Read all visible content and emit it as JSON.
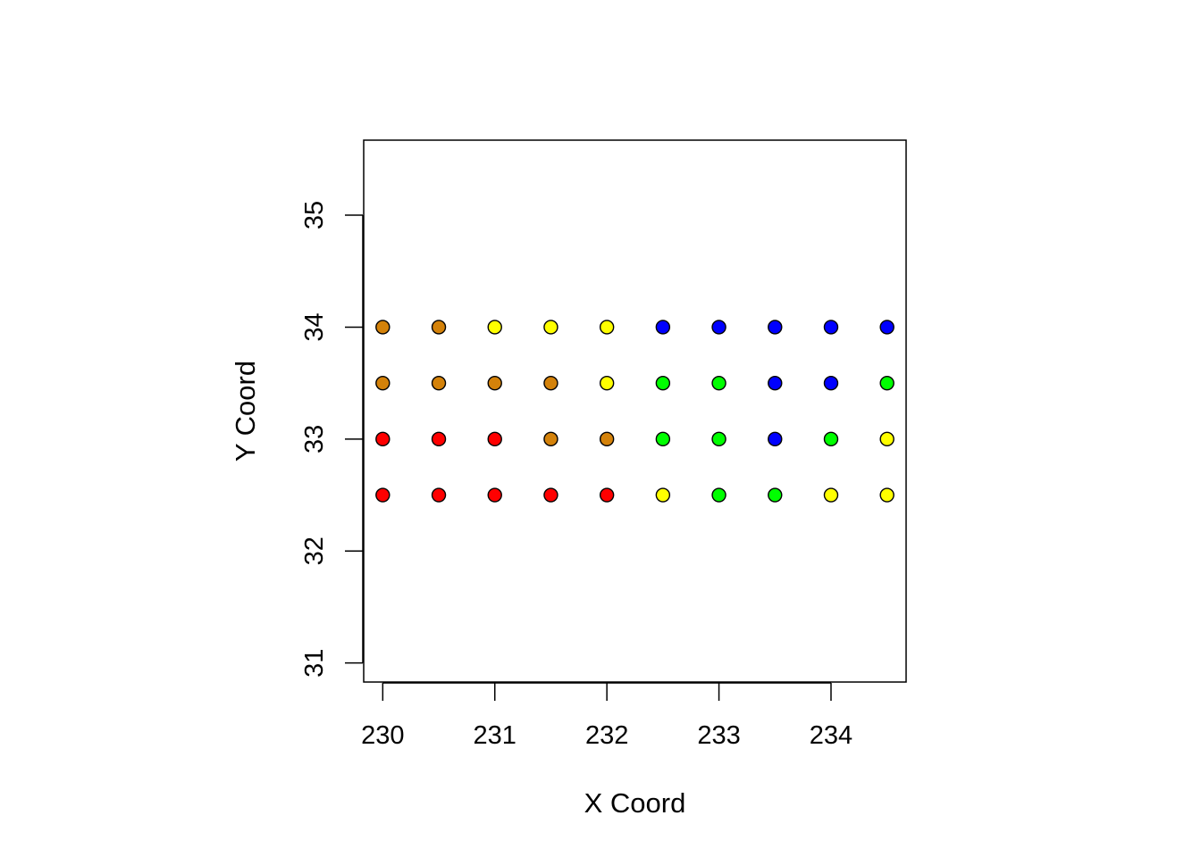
{
  "chart_data": {
    "type": "scatter",
    "title": "",
    "xlabel": "X Coord",
    "ylabel": "Y Coord",
    "xlim": [
      229.83,
      234.67
    ],
    "ylim": [
      30.83,
      35.67
    ],
    "x_ticks": [
      230,
      231,
      232,
      233,
      234
    ],
    "y_ticks": [
      31,
      32,
      33,
      34,
      35
    ],
    "grid": false,
    "legend": "none",
    "marker": "filled circle with black outline",
    "colors": {
      "red": "#FF0000",
      "orange": "#D4820A",
      "yellow": "#FFFF00",
      "green": "#00FF00",
      "blue": "#0000FF",
      "outline": "#000000"
    },
    "points": [
      {
        "x": 230.0,
        "y": 34.0,
        "color": "#D4820A"
      },
      {
        "x": 230.5,
        "y": 34.0,
        "color": "#D4820A"
      },
      {
        "x": 231.0,
        "y": 34.0,
        "color": "#FFFF00"
      },
      {
        "x": 231.5,
        "y": 34.0,
        "color": "#FFFF00"
      },
      {
        "x": 232.0,
        "y": 34.0,
        "color": "#FFFF00"
      },
      {
        "x": 232.5,
        "y": 34.0,
        "color": "#0000FF"
      },
      {
        "x": 233.0,
        "y": 34.0,
        "color": "#0000FF"
      },
      {
        "x": 233.5,
        "y": 34.0,
        "color": "#0000FF"
      },
      {
        "x": 234.0,
        "y": 34.0,
        "color": "#0000FF"
      },
      {
        "x": 234.5,
        "y": 34.0,
        "color": "#0000FF"
      },
      {
        "x": 230.0,
        "y": 33.5,
        "color": "#D4820A"
      },
      {
        "x": 230.5,
        "y": 33.5,
        "color": "#D4820A"
      },
      {
        "x": 231.0,
        "y": 33.5,
        "color": "#D4820A"
      },
      {
        "x": 231.5,
        "y": 33.5,
        "color": "#D4820A"
      },
      {
        "x": 232.0,
        "y": 33.5,
        "color": "#FFFF00"
      },
      {
        "x": 232.5,
        "y": 33.5,
        "color": "#00FF00"
      },
      {
        "x": 233.0,
        "y": 33.5,
        "color": "#00FF00"
      },
      {
        "x": 233.5,
        "y": 33.5,
        "color": "#0000FF"
      },
      {
        "x": 234.0,
        "y": 33.5,
        "color": "#0000FF"
      },
      {
        "x": 234.5,
        "y": 33.5,
        "color": "#00FF00"
      },
      {
        "x": 230.0,
        "y": 33.0,
        "color": "#FF0000"
      },
      {
        "x": 230.5,
        "y": 33.0,
        "color": "#FF0000"
      },
      {
        "x": 231.0,
        "y": 33.0,
        "color": "#FF0000"
      },
      {
        "x": 231.5,
        "y": 33.0,
        "color": "#D4820A"
      },
      {
        "x": 232.0,
        "y": 33.0,
        "color": "#D4820A"
      },
      {
        "x": 232.5,
        "y": 33.0,
        "color": "#00FF00"
      },
      {
        "x": 233.0,
        "y": 33.0,
        "color": "#00FF00"
      },
      {
        "x": 233.5,
        "y": 33.0,
        "color": "#0000FF"
      },
      {
        "x": 234.0,
        "y": 33.0,
        "color": "#00FF00"
      },
      {
        "x": 234.5,
        "y": 33.0,
        "color": "#FFFF00"
      },
      {
        "x": 230.0,
        "y": 32.5,
        "color": "#FF0000"
      },
      {
        "x": 230.5,
        "y": 32.5,
        "color": "#FF0000"
      },
      {
        "x": 231.0,
        "y": 32.5,
        "color": "#FF0000"
      },
      {
        "x": 231.5,
        "y": 32.5,
        "color": "#FF0000"
      },
      {
        "x": 232.0,
        "y": 32.5,
        "color": "#FF0000"
      },
      {
        "x": 232.5,
        "y": 32.5,
        "color": "#FFFF00"
      },
      {
        "x": 233.0,
        "y": 32.5,
        "color": "#00FF00"
      },
      {
        "x": 233.5,
        "y": 32.5,
        "color": "#00FF00"
      },
      {
        "x": 234.0,
        "y": 32.5,
        "color": "#FFFF00"
      },
      {
        "x": 234.5,
        "y": 32.5,
        "color": "#FFFF00"
      }
    ]
  }
}
